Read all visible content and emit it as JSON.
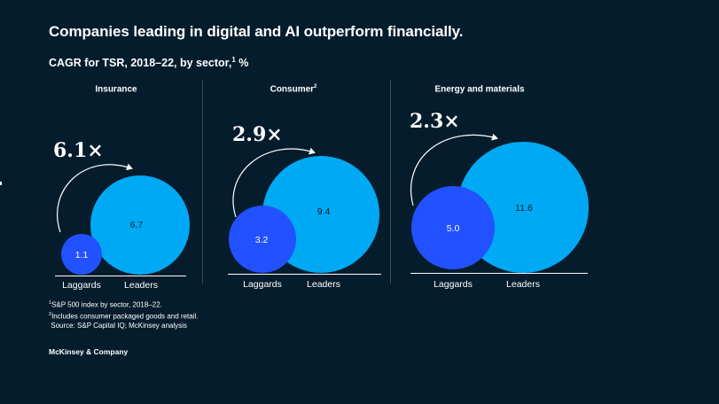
{
  "colors": {
    "background": "#051c2c",
    "leaders": "#00a9f4",
    "laggards": "#2251ff",
    "text": "#ffffff",
    "divider": "#3a4d5c"
  },
  "chart_data": {
    "type": "bubble",
    "title": "Companies leading in digital and AI outperform financially.",
    "subtitle": "CAGR for TSR, 2018–22, by sector,",
    "subtitle_sup": "1",
    "subtitle_unit": " %",
    "categories": [
      "Laggards",
      "Leaders"
    ],
    "panels": [
      {
        "sector": "Insurance",
        "sector_sup": "",
        "multiplier": "6.1×",
        "laggards": 1.1,
        "leaders": 6.7,
        "laggards_label": "1.1",
        "leaders_label": "6.7"
      },
      {
        "sector": "Consumer",
        "sector_sup": "2",
        "multiplier": "2.9×",
        "laggards": 3.2,
        "leaders": 9.4,
        "laggards_label": "3.2",
        "leaders_label": "9.4"
      },
      {
        "sector": "Energy and materials",
        "sector_sup": "",
        "multiplier": "2.3×",
        "laggards": 5.0,
        "leaders": 11.6,
        "laggards_label": "5.0",
        "leaders_label": "11.6"
      }
    ]
  },
  "footnotes": {
    "note1_sup": "1",
    "note1": "S&P 500 index by sector, 2018–22.",
    "note2_sup": "2",
    "note2": "Includes consumer packaged goods and retail.",
    "source": "Source: S&P Capital IQ; McKinsey analysis"
  },
  "brand": "McKinsey & Company"
}
